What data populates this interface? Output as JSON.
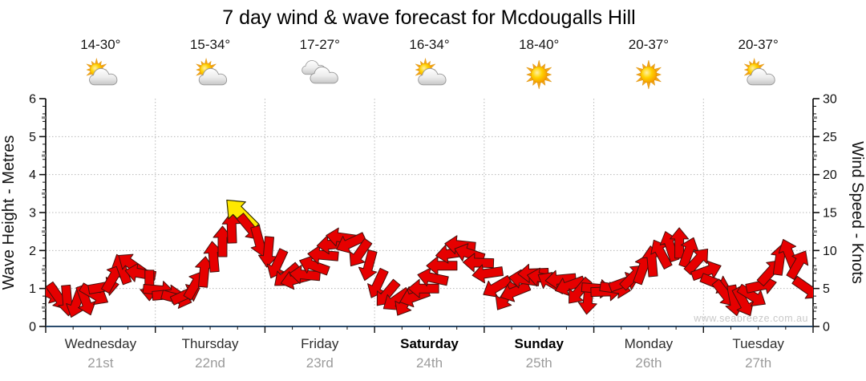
{
  "title": "7 day wind & wave forecast for Mcdougalls Hill",
  "watermark": "www.seabreeze.com.au",
  "colors": {
    "arrow_fill": "#e60000",
    "arrow_outline": "#46100c",
    "special_arrow_fill": "#ffe800",
    "special_arrow_outline": "#2e2a00",
    "grid": "#b8b8b8",
    "axis": "#000000",
    "bottom_axis": "#2b4c6e",
    "sun": "#ffd200",
    "cloud": "#dcdcdc"
  },
  "days": [
    {
      "name": "Wednesday",
      "date": "21st",
      "temp": "14-30°",
      "icon": "partly-cloudy-icon",
      "bold": false
    },
    {
      "name": "Thursday",
      "date": "22nd",
      "temp": "15-34°",
      "icon": "partly-cloudy-icon",
      "bold": false
    },
    {
      "name": "Friday",
      "date": "23rd",
      "temp": "17-27°",
      "icon": "cloudy-icon",
      "bold": false
    },
    {
      "name": "Saturday",
      "date": "24th",
      "temp": "16-34°",
      "icon": "partly-cloudy-icon",
      "bold": true
    },
    {
      "name": "Sunday",
      "date": "25th",
      "temp": "18-40°",
      "icon": "sunny-icon",
      "bold": true
    },
    {
      "name": "Monday",
      "date": "26th",
      "temp": "20-37°",
      "icon": "sunny-icon",
      "bold": false
    },
    {
      "name": "Tuesday",
      "date": "27th",
      "temp": "20-37°",
      "icon": "partly-cloudy-icon",
      "bold": false
    }
  ],
  "chart_data": {
    "type": "wind-arrow-timeseries",
    "title": "7 day wind & wave forecast for Mcdougalls Hill",
    "left_axis": {
      "label": "Wave Height - Metres",
      "min": 0,
      "max": 6,
      "ticks": [
        0,
        1,
        2,
        3,
        4,
        5,
        6
      ]
    },
    "right_axis": {
      "label": "Wind Speed - Knots",
      "min": 0,
      "max": 30,
      "ticks": [
        0,
        5,
        10,
        15,
        20,
        25,
        30
      ]
    },
    "x_axis": {
      "span_hours": 168,
      "day_labels": [
        "Wednesday 21st",
        "Thursday 22nd",
        "Friday 23rd",
        "Saturday 24th",
        "Sunday 25th",
        "Monday 26th",
        "Tuesday 27th"
      ]
    },
    "grid": true,
    "point_format": [
      "hour",
      "wind_speed_knots",
      "arrow_rotation_deg_clockwise_from_east"
    ],
    "special_point_index": 21,
    "special_point_meaning": "peak-wind-highlight-arrow",
    "points": [
      [
        0,
        4.4,
        25
      ],
      [
        2,
        3.9,
        55
      ],
      [
        4,
        3.4,
        85
      ],
      [
        6,
        3.1,
        110
      ],
      [
        8,
        3.4,
        70
      ],
      [
        10,
        4.2,
        30
      ],
      [
        12,
        5.2,
        -10
      ],
      [
        14,
        6.4,
        -60
      ],
      [
        16,
        7.6,
        -110
      ],
      [
        18,
        8.2,
        -145
      ],
      [
        20,
        7.0,
        -170
      ],
      [
        22,
        5.4,
        90
      ],
      [
        24,
        4.8,
        5
      ],
      [
        26,
        4.2,
        -5
      ],
      [
        28,
        3.7,
        15
      ],
      [
        30,
        4.2,
        -25
      ],
      [
        32,
        5.5,
        -60
      ],
      [
        34,
        7.2,
        -85
      ],
      [
        36,
        9.2,
        -95
      ],
      [
        38,
        11.2,
        -90
      ],
      [
        40,
        13.0,
        -92
      ],
      [
        42,
        14.8,
        -135
      ],
      [
        44,
        13.0,
        50
      ],
      [
        46,
        11.2,
        75
      ],
      [
        48,
        9.8,
        95
      ],
      [
        50,
        8.2,
        115
      ],
      [
        52,
        6.7,
        140
      ],
      [
        54,
        6.2,
        165
      ],
      [
        56,
        6.8,
        185
      ],
      [
        58,
        8.0,
        200
      ],
      [
        60,
        9.4,
        185
      ],
      [
        62,
        10.8,
        175
      ],
      [
        64,
        11.7,
        188
      ],
      [
        66,
        11.0,
        155
      ],
      [
        68,
        9.6,
        125
      ],
      [
        70,
        8.0,
        105
      ],
      [
        72,
        5.6,
        115
      ],
      [
        74,
        4.3,
        130
      ],
      [
        76,
        3.5,
        145
      ],
      [
        78,
        3.2,
        120
      ],
      [
        80,
        3.9,
        160
      ],
      [
        82,
        5.0,
        180
      ],
      [
        84,
        6.4,
        192
      ],
      [
        86,
        8.0,
        180
      ],
      [
        88,
        9.6,
        172
      ],
      [
        90,
        10.7,
        186
      ],
      [
        92,
        9.6,
        198
      ],
      [
        94,
        8.4,
        182
      ],
      [
        96,
        7.0,
        172
      ],
      [
        98,
        5.2,
        150
      ],
      [
        100,
        3.9,
        122
      ],
      [
        102,
        4.6,
        158
      ],
      [
        104,
        6.2,
        188
      ],
      [
        106,
        7.0,
        178
      ],
      [
        108,
        6.4,
        -170
      ],
      [
        110,
        5.8,
        -150
      ],
      [
        112,
        6.2,
        175
      ],
      [
        114,
        5.4,
        160
      ],
      [
        116,
        4.6,
        130
      ],
      [
        118,
        3.6,
        95
      ],
      [
        120,
        5.0,
        5
      ],
      [
        122,
        4.6,
        -2
      ],
      [
        124,
        5.0,
        8
      ],
      [
        126,
        5.8,
        -20
      ],
      [
        128,
        6.6,
        -45
      ],
      [
        130,
        7.6,
        -70
      ],
      [
        132,
        8.6,
        -95
      ],
      [
        134,
        9.6,
        -118
      ],
      [
        136,
        10.6,
        -108
      ],
      [
        138,
        11.0,
        -90
      ],
      [
        140,
        9.8,
        -70
      ],
      [
        142,
        8.7,
        -48
      ],
      [
        144,
        7.3,
        -20
      ],
      [
        146,
        5.7,
        22
      ],
      [
        148,
        4.3,
        52
      ],
      [
        150,
        3.4,
        80
      ],
      [
        152,
        3.2,
        62
      ],
      [
        154,
        4.0,
        32
      ],
      [
        156,
        5.4,
        -12
      ],
      [
        158,
        7.2,
        -48
      ],
      [
        160,
        8.8,
        -82
      ],
      [
        162,
        9.6,
        -112
      ],
      [
        164,
        8.2,
        -60
      ],
      [
        166,
        5.0,
        35
      ]
    ]
  }
}
